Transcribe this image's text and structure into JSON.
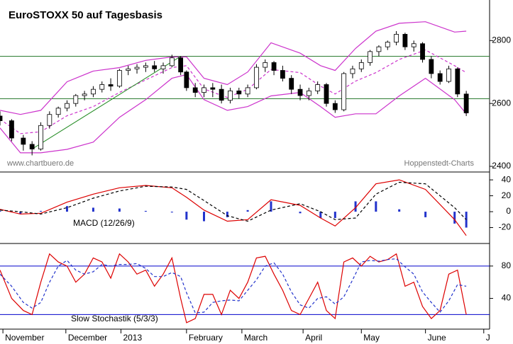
{
  "chart_data": [
    {
      "type": "candlestick",
      "title": "EuroSTOXX 50 auf Tagesbasis",
      "annotations": [
        "www.chartbuero.de",
        "Hoppenstedt-Charts"
      ],
      "x": [
        0,
        4,
        8,
        11,
        14,
        17,
        20,
        23,
        26,
        29,
        32,
        35,
        38,
        41,
        44,
        47,
        50,
        53,
        56,
        59,
        62,
        64,
        67,
        70,
        73,
        76,
        79,
        82,
        85,
        88,
        91,
        94,
        97,
        100,
        103,
        106,
        109,
        112,
        115,
        118,
        121,
        124,
        127,
        130,
        133,
        136,
        139,
        142,
        145,
        148,
        151,
        154,
        157,
        160
      ],
      "open": [
        2560,
        2545,
        2490,
        2470,
        2455,
        2530,
        2565,
        2585,
        2600,
        2625,
        2630,
        2645,
        2660,
        2655,
        2705,
        2710,
        2715,
        2720,
        2710,
        2720,
        2745,
        2700,
        2650,
        2635,
        2650,
        2645,
        2610,
        2640,
        2630,
        2650,
        2715,
        2730,
        2705,
        2680,
        2645,
        2625,
        2640,
        2660,
        2600,
        2580,
        2695,
        2710,
        2730,
        2765,
        2780,
        2795,
        2820,
        2780,
        2790,
        2740,
        2695,
        2670,
        2710,
        2630
      ],
      "high": [
        2575,
        2550,
        2500,
        2480,
        2540,
        2575,
        2590,
        2610,
        2630,
        2640,
        2655,
        2670,
        2680,
        2710,
        2720,
        2725,
        2730,
        2735,
        2730,
        2755,
        2750,
        2705,
        2665,
        2660,
        2665,
        2660,
        2650,
        2650,
        2660,
        2725,
        2740,
        2735,
        2720,
        2690,
        2660,
        2650,
        2670,
        2665,
        2610,
        2700,
        2720,
        2740,
        2770,
        2785,
        2800,
        2830,
        2825,
        2800,
        2795,
        2750,
        2705,
        2720,
        2715,
        2640
      ],
      "low": [
        2530,
        2480,
        2450,
        2435,
        2450,
        2520,
        2555,
        2575,
        2590,
        2610,
        2620,
        2635,
        2640,
        2650,
        2690,
        2695,
        2700,
        2700,
        2695,
        2715,
        2690,
        2640,
        2620,
        2620,
        2620,
        2600,
        2600,
        2615,
        2620,
        2645,
        2700,
        2690,
        2670,
        2630,
        2610,
        2610,
        2630,
        2590,
        2570,
        2575,
        2680,
        2700,
        2720,
        2750,
        2770,
        2785,
        2770,
        2765,
        2730,
        2680,
        2660,
        2665,
        2620,
        2560
      ],
      "close": [
        2545,
        2490,
        2470,
        2455,
        2530,
        2565,
        2585,
        2600,
        2625,
        2630,
        2645,
        2660,
        2655,
        2705,
        2710,
        2715,
        2720,
        2710,
        2720,
        2745,
        2700,
        2650,
        2635,
        2650,
        2645,
        2610,
        2640,
        2630,
        2650,
        2715,
        2730,
        2705,
        2680,
        2645,
        2625,
        2640,
        2660,
        2600,
        2580,
        2695,
        2710,
        2730,
        2765,
        2780,
        2795,
        2820,
        2780,
        2790,
        2740,
        2695,
        2670,
        2710,
        2630,
        2570
      ],
      "up_color": "#ffffff",
      "down_color": "#000000",
      "bands": {
        "x": [
          0,
          7,
          14,
          23,
          32,
          41,
          50,
          59,
          64,
          70,
          78,
          85,
          93,
          103,
          110,
          115,
          122,
          129,
          137,
          146,
          156,
          160
        ],
        "series": [
          {
            "color": "#cc33cc",
            "values": [
              2578,
              2565,
              2578,
              2669,
              2703,
              2714,
              2737,
              2748,
              2748,
              2680,
              2660,
              2700,
              2793,
              2760,
              2720,
              2705,
              2775,
              2830,
              2855,
              2860,
              2827,
              2830
            ]
          },
          {
            "color": "#cc33cc",
            "dashed": true,
            "values": [
              2550,
              2504,
              2510,
              2561,
              2590,
              2635,
              2675,
              2714,
              2720,
              2646,
              2619,
              2645,
              2708,
              2698,
              2655,
              2630,
              2671,
              2698,
              2740,
              2770,
              2720,
              2698
            ]
          },
          {
            "color": "#cc33cc",
            "values": [
              2522,
              2443,
              2443,
              2454,
              2477,
              2556,
              2612,
              2680,
              2692,
              2612,
              2578,
              2590,
              2624,
              2635,
              2590,
              2556,
              2567,
              2567,
              2624,
              2680,
              2612,
              2567
            ]
          }
        ]
      },
      "hlines": [
        {
          "value": 2750,
          "color": "#2e7d32"
        },
        {
          "value": 2615,
          "color": "#2e7d32"
        }
      ],
      "trendline": {
        "x": [
          11,
          62
        ],
        "y": [
          2455,
          2750
        ],
        "color": "#228b22"
      },
      "xlim": [
        0,
        168
      ],
      "ylim": [
        2382,
        2929
      ],
      "yticks": [
        2400,
        2600,
        2800
      ]
    },
    {
      "type": "macd",
      "label": "MACD (12/26/9)",
      "x": [
        0,
        7,
        14,
        23,
        32,
        41,
        50,
        59,
        64,
        70,
        78,
        85,
        93,
        103,
        110,
        115,
        122,
        129,
        137,
        146,
        156,
        160
      ],
      "series": [
        {
          "color": "#dd0000",
          "values": [
            3,
            -3,
            -2,
            12,
            22,
            30,
            33,
            30,
            18,
            2,
            -12,
            -10,
            15,
            8,
            -8,
            -18,
            5,
            35,
            40,
            28,
            -10,
            -30
          ]
        },
        {
          "color": "#000000",
          "dashed": true,
          "values": [
            2,
            0,
            -3,
            5,
            17,
            26,
            32,
            31,
            28,
            14,
            -5,
            -12,
            2,
            10,
            0,
            -10,
            -8,
            22,
            37,
            35,
            5,
            -10
          ]
        }
      ],
      "histogram": {
        "color": "#2233cc",
        "values": [
          1,
          -3,
          1,
          7,
          5,
          4,
          1,
          -1,
          -10,
          -12,
          -7,
          2,
          13,
          -2,
          -8,
          -8,
          13,
          13,
          3,
          -7,
          -15,
          -20
        ]
      },
      "xlim": [
        0,
        168
      ],
      "ylim": [
        -40,
        49
      ],
      "yticks": [
        40,
        20,
        0,
        -20
      ]
    },
    {
      "type": "stochastic",
      "label": "Slow Stochastik (5/3/3)",
      "x": [
        0,
        4,
        8,
        11,
        14,
        17,
        20,
        23,
        26,
        29,
        32,
        35,
        38,
        41,
        44,
        47,
        50,
        53,
        56,
        59,
        62,
        64,
        67,
        70,
        73,
        76,
        79,
        82,
        85,
        88,
        91,
        94,
        97,
        100,
        103,
        106,
        109,
        112,
        115,
        118,
        121,
        124,
        127,
        130,
        133,
        136,
        139,
        142,
        145,
        148,
        151,
        154,
        157,
        160
      ],
      "series": [
        {
          "color": "#dd0000",
          "values": [
            75,
            40,
            25,
            20,
            60,
            95,
            85,
            80,
            60,
            70,
            90,
            85,
            65,
            95,
            85,
            70,
            75,
            55,
            70,
            90,
            40,
            10,
            15,
            45,
            45,
            20,
            50,
            40,
            60,
            90,
            92,
            70,
            50,
            25,
            20,
            40,
            60,
            25,
            15,
            85,
            90,
            80,
            92,
            85,
            88,
            95,
            55,
            60,
            30,
            15,
            25,
            70,
            75,
            20
          ]
        },
        {
          "color": "#2233cc",
          "dashed": true,
          "values": [
            70,
            55,
            35,
            28,
            35,
            60,
            80,
            87,
            75,
            70,
            73,
            82,
            80,
            82,
            82,
            83,
            77,
            67,
            67,
            72,
            67,
            47,
            22,
            23,
            35,
            37,
            38,
            37,
            50,
            63,
            80,
            84,
            70,
            48,
            32,
            28,
            40,
            42,
            33,
            42,
            63,
            85,
            87,
            86,
            88,
            89,
            79,
            70,
            48,
            35,
            23,
            37,
            57,
            55
          ]
        }
      ],
      "hlines": [
        {
          "value": 80,
          "color": "#0000cc"
        },
        {
          "value": 20,
          "color": "#0000cc"
        }
      ],
      "xlim": [
        0,
        168
      ],
      "ylim": [
        2,
        107
      ],
      "yticks": [
        80,
        40
      ],
      "xticks": [
        {
          "value": 1,
          "label": "November"
        },
        {
          "value": 22.6,
          "label": "December"
        },
        {
          "value": 41.5,
          "label": "2013"
        },
        {
          "value": 64,
          "label": "February"
        },
        {
          "value": 83,
          "label": "March"
        },
        {
          "value": 104,
          "label": "April"
        },
        {
          "value": 124,
          "label": "May"
        },
        {
          "value": 146,
          "label": "June"
        },
        {
          "value": 166,
          "label": "J"
        }
      ]
    }
  ]
}
